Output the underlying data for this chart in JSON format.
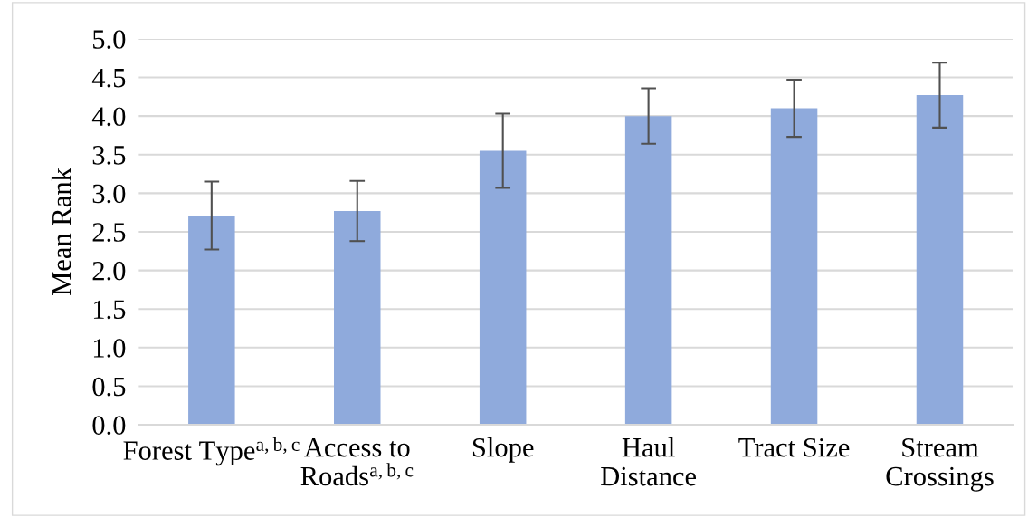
{
  "chart_data": {
    "type": "bar",
    "ylabel": "Mean Rank",
    "categories": [
      "Forest Type$^{a,b,c}$",
      "Access to\nRoads$^{a,b,c}$",
      "Slope",
      "Haul\nDistance",
      "Tract Size",
      "Stream\nCrossings"
    ],
    "values": [
      2.71,
      2.77,
      3.55,
      4.0,
      4.1,
      4.27
    ],
    "errors": [
      0.44,
      0.39,
      0.48,
      0.36,
      0.37,
      0.42
    ],
    "color": "#8faadc",
    "ylim": [
      0,
      5
    ],
    "yticks": [
      {
        "value": 0,
        "label": "0.0"
      },
      0.5,
      {
        "value": 1,
        "label": "1.0"
      },
      1.5,
      {
        "value": 2,
        "label": "2.0"
      },
      2.5,
      {
        "value": 3,
        "label": "3.0"
      },
      3.5,
      {
        "value": 4,
        "label": "4.0"
      },
      4.5,
      {
        "value": 5,
        "label": "5.0"
      }
    ],
    "grid": "y"
  }
}
